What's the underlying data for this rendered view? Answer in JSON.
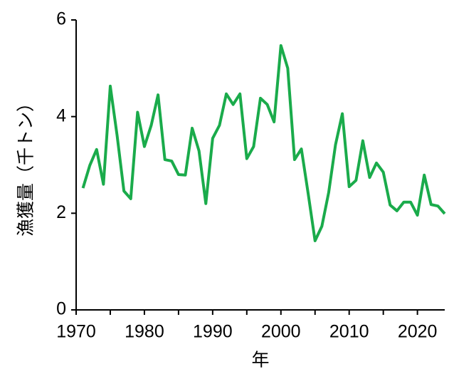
{
  "chart_data": {
    "type": "line",
    "x_label": "年",
    "y_label": "漁獲量（千トン）",
    "x": [
      1971,
      1972,
      1973,
      1974,
      1975,
      1976,
      1977,
      1978,
      1979,
      1980,
      1981,
      1982,
      1983,
      1984,
      1985,
      1986,
      1987,
      1988,
      1989,
      1990,
      1991,
      1992,
      1993,
      1994,
      1995,
      1996,
      1997,
      1998,
      1999,
      2000,
      2001,
      2002,
      2003,
      2004,
      2005,
      2006,
      2007,
      2008,
      2009,
      2010,
      2011,
      2012,
      2013,
      2014,
      2015,
      2016,
      2017,
      2018,
      2019,
      2020,
      2021,
      2022,
      2023,
      2024
    ],
    "series": [
      {
        "color": "#1aab4b",
        "values": [
          2.52,
          2.99,
          3.32,
          2.6,
          4.63,
          3.61,
          2.46,
          2.3,
          4.09,
          3.38,
          3.82,
          4.45,
          3.11,
          3.08,
          2.8,
          2.79,
          3.76,
          3.29,
          2.2,
          3.55,
          3.82,
          4.47,
          4.25,
          4.47,
          3.13,
          3.38,
          4.38,
          4.25,
          3.89,
          5.47,
          5.0,
          3.11,
          3.33,
          2.4,
          1.43,
          1.73,
          2.43,
          3.42,
          4.06,
          2.55,
          2.68,
          3.5,
          2.74,
          3.04,
          2.85,
          2.17,
          2.05,
          2.23,
          2.23,
          1.96,
          2.79,
          2.18,
          2.15,
          1.99
        ]
      }
    ],
    "xlim": [
      1970,
      2024
    ],
    "xticks": [
      1970,
      1980,
      1990,
      2000,
      2010,
      2020
    ],
    "xminor_ticks": [
      1975,
      1985,
      1995,
      2005,
      2015
    ],
    "ylim": [
      0,
      6
    ],
    "yticks": [
      0,
      2,
      4,
      6
    ],
    "grid": false
  }
}
